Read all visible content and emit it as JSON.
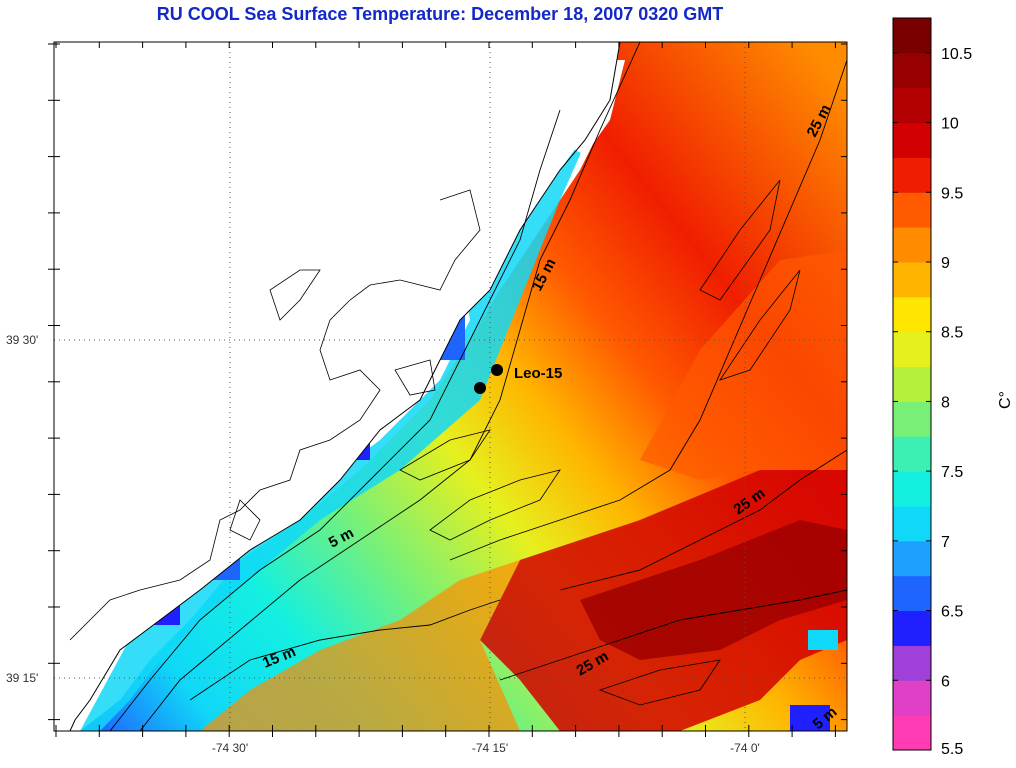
{
  "title": "RU COOL  Sea Surface Temperature:  December 18, 2007 0320 GMT",
  "map": {
    "y_ticks": [
      {
        "label": "39 30'",
        "value": 39.5
      },
      {
        "label": "39 15'",
        "value": 39.25
      }
    ],
    "x_ticks": [
      {
        "label": "-74 30'",
        "value": -74.5
      },
      {
        "label": "-74 15'",
        "value": -74.25
      },
      {
        "label": "-74 0'",
        "value": -74.0
      }
    ],
    "station": {
      "label": "Leo-15"
    },
    "contour_labels": [
      {
        "text": "15 m",
        "id": "contour-label-15m-north"
      },
      {
        "text": "25 m",
        "id": "contour-label-25m-northeast"
      },
      {
        "text": "5 m",
        "id": "contour-label-5m"
      },
      {
        "text": "25 m",
        "id": "contour-label-25m-east"
      },
      {
        "text": "15 m",
        "id": "contour-label-15m-south"
      },
      {
        "text": "25 m",
        "id": "contour-label-25m-south"
      },
      {
        "text": "5 m",
        "id": "contour-label-5m-corner"
      }
    ]
  },
  "colorbar": {
    "unit": "C°",
    "min": 5.5,
    "max": 10.75,
    "ticks": [
      "5.5",
      "6",
      "6.5",
      "7",
      "7.5",
      "8",
      "8.5",
      "9",
      "9.5",
      "10",
      "10.5"
    ],
    "colors": [
      "#ff3cb4",
      "#e040c8",
      "#a040d8",
      "#2020ff",
      "#1e64ff",
      "#1ea0ff",
      "#10d8f8",
      "#14f0e0",
      "#3cf0b4",
      "#78f078",
      "#b4f03c",
      "#e6f01e",
      "#ffe600",
      "#ffb400",
      "#ff8c00",
      "#ff5a00",
      "#f01e00",
      "#d20000",
      "#b40000",
      "#960000",
      "#7a0000"
    ]
  }
}
